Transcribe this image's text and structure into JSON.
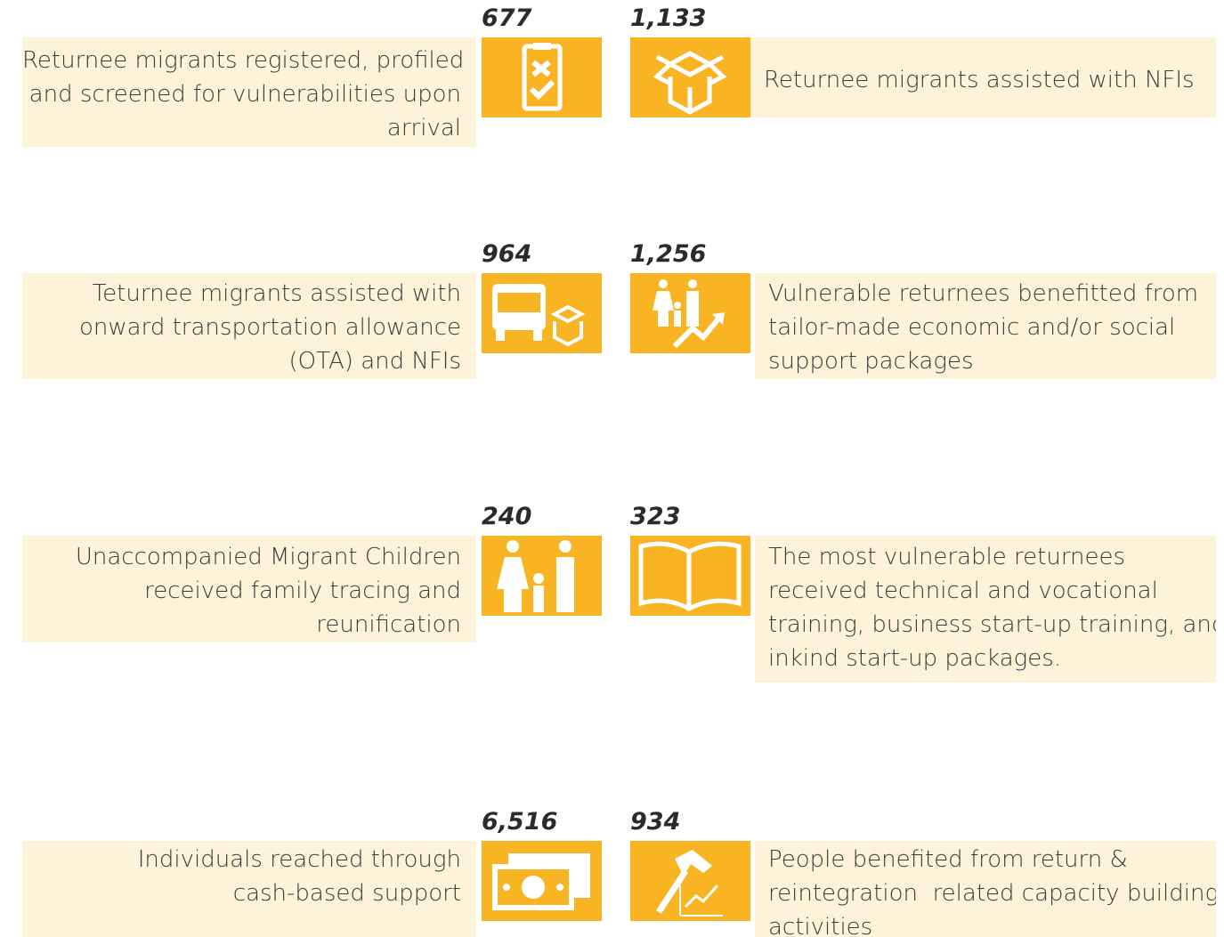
{
  "rows": [
    {
      "left": {
        "number": "677",
        "lines": [
          "Returnee migrants registered, profiled",
          "and screened for vulnerabilities upon",
          "arrival"
        ]
      },
      "right": {
        "number": "1,133",
        "lines": [
          "Returnee migrants assisted with NFIs"
        ]
      }
    },
    {
      "left": {
        "number": "964",
        "lines": [
          "Teturnee migrants assisted with",
          "onward transportation allowance",
          "(OTA) and NFIs"
        ]
      },
      "right": {
        "number": "1,256",
        "lines": [
          "Vulnerable returnees benefitted from",
          "tailor-made economic and/or social",
          "support packages"
        ]
      }
    },
    {
      "left": {
        "number": "240",
        "lines": [
          "Unaccompanied Migrant Children",
          "received family tracing and",
          "reunification"
        ]
      },
      "right": {
        "number": "323",
        "lines": [
          "The most vulnerable returnees",
          "received technical and vocational",
          "training, business start-up training, and",
          "inkind start-up packages."
        ]
      }
    },
    {
      "left": {
        "number": "6,516",
        "lines": [
          "Individuals reached through",
          "cash-based support"
        ]
      },
      "right": {
        "number": "934",
        "lines": [
          "People benefited from return &",
          "reintegration  related capacity building",
          "activities"
        ]
      }
    }
  ]
}
